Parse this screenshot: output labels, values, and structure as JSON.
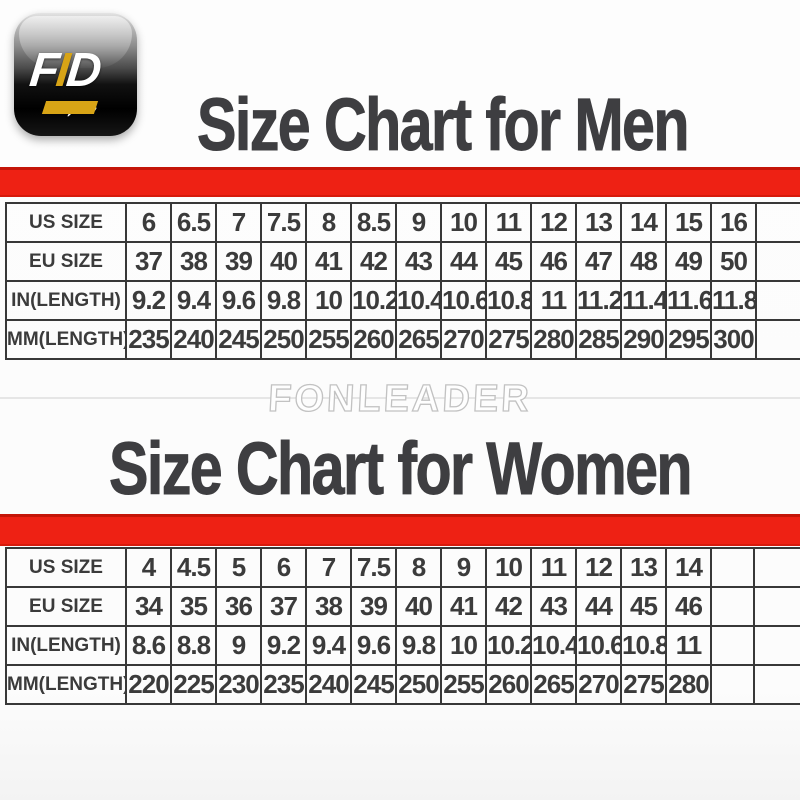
{
  "logo": {
    "letters": [
      "F",
      "I",
      "D"
    ],
    "arrow_glyph": "→",
    "chevrons": "»"
  },
  "titles": {
    "men": "Size Chart for Men",
    "women": "Size Chart for Women"
  },
  "watermark": "FONLEADER",
  "colors": {
    "divider_red": "#ee2114",
    "divider_red_dark": "#c41508",
    "title_ink": "#3e3e41",
    "table_line": "#383838",
    "logo_gold": "#d8a416"
  },
  "chart_data": [
    {
      "type": "table",
      "title": "Size Chart for Men",
      "layout": {
        "trailing_empty_cols": 0,
        "grid": true
      },
      "rows": [
        {
          "label": "US SIZE",
          "values": [
            "6",
            "6.5",
            "7",
            "7.5",
            "8",
            "8.5",
            "9",
            "10",
            "11",
            "12",
            "13",
            "14",
            "15",
            "16"
          ]
        },
        {
          "label": "EU SIZE",
          "values": [
            "37",
            "38",
            "39",
            "40",
            "41",
            "42",
            "43",
            "44",
            "45",
            "46",
            "47",
            "48",
            "49",
            "50"
          ]
        },
        {
          "label": "IN(LENGTH)",
          "values": [
            "9.2",
            "9.4",
            "9.6",
            "9.8",
            "10",
            "10.2",
            "10.4",
            "10.6",
            "10.8",
            "11",
            "11.2",
            "11.4",
            "11.6",
            "11.8"
          ]
        },
        {
          "label": "MM(LENGTH)",
          "values": [
            "235",
            "240",
            "245",
            "250",
            "255",
            "260",
            "265",
            "270",
            "275",
            "280",
            "285",
            "290",
            "295",
            "300"
          ]
        }
      ]
    },
    {
      "type": "table",
      "title": "Size Chart for Women",
      "layout": {
        "trailing_empty_cols": 1,
        "grid": true
      },
      "rows": [
        {
          "label": "US SIZE",
          "values": [
            "4",
            "4.5",
            "5",
            "6",
            "7",
            "7.5",
            "8",
            "9",
            "10",
            "11",
            "12",
            "13",
            "14"
          ]
        },
        {
          "label": "EU SIZE",
          "values": [
            "34",
            "35",
            "36",
            "37",
            "38",
            "39",
            "40",
            "41",
            "42",
            "43",
            "44",
            "45",
            "46"
          ]
        },
        {
          "label": "IN(LENGTH)",
          "values": [
            "8.6",
            "8.8",
            "9",
            "9.2",
            "9.4",
            "9.6",
            "9.8",
            "10",
            "10.2",
            "10.4",
            "10.6",
            "10.8",
            "11"
          ]
        },
        {
          "label": "MM(LENGTH)",
          "values": [
            "220",
            "225",
            "230",
            "235",
            "240",
            "245",
            "250",
            "255",
            "260",
            "265",
            "270",
            "275",
            "280"
          ]
        }
      ]
    }
  ]
}
